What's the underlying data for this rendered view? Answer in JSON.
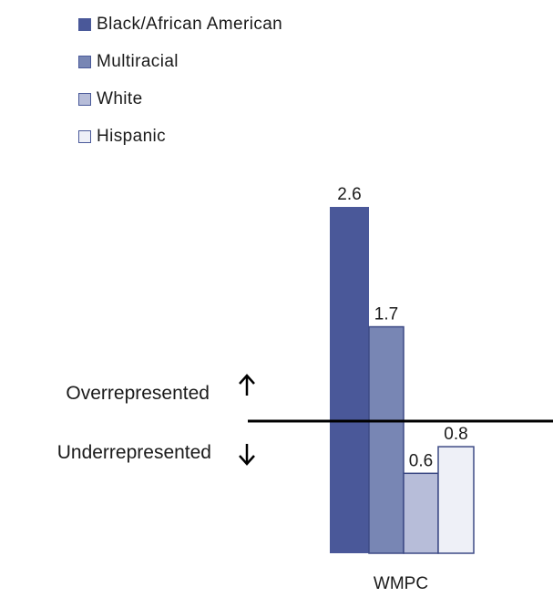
{
  "chart_data": {
    "type": "bar",
    "categories": [
      "WMPC"
    ],
    "series": [
      {
        "name": "Black/African American",
        "values": [
          2.6
        ],
        "color": "#4a5899"
      },
      {
        "name": "Multiracial",
        "values": [
          1.7
        ],
        "color": "#7886b4"
      },
      {
        "name": "White",
        "values": [
          0.6
        ],
        "color": "#b7bdd9"
      },
      {
        "name": "Hispanic",
        "values": [
          0.8
        ],
        "color": "#eef0f7"
      }
    ],
    "data_labels": [
      "2.6",
      "1.7",
      "0.6",
      "0.8"
    ],
    "reference_line": 1.0,
    "annotations": {
      "above": "Overrepresented",
      "above_icon": "arrow-up-icon",
      "below": "Underrepresented",
      "below_icon": "arrow-down-icon"
    },
    "xlabel": "WMPC",
    "ylim": [
      0,
      2.6
    ],
    "legend_position": "top-left",
    "grid": false
  }
}
